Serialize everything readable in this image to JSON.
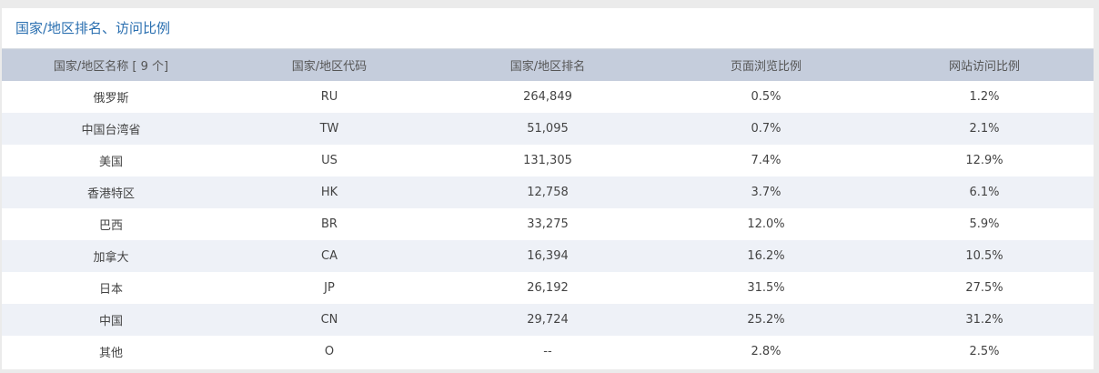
{
  "panel": {
    "title": "国家/地区排名、访问比例"
  },
  "table": {
    "headers": [
      "国家/地区名称 [ 9 个]",
      "国家/地区代码",
      "国家/地区排名",
      "页面浏览比例",
      "网站访问比例"
    ],
    "rows": [
      [
        "俄罗斯",
        "RU",
        "264,849",
        "0.5%",
        "1.2%"
      ],
      [
        "中国台湾省",
        "TW",
        "51,095",
        "0.7%",
        "2.1%"
      ],
      [
        "美国",
        "US",
        "131,305",
        "7.4%",
        "12.9%"
      ],
      [
        "香港特区",
        "HK",
        "12,758",
        "3.7%",
        "6.1%"
      ],
      [
        "巴西",
        "BR",
        "33,275",
        "12.0%",
        "5.9%"
      ],
      [
        "加拿大",
        "CA",
        "16,394",
        "16.2%",
        "10.5%"
      ],
      [
        "日本",
        "JP",
        "26,192",
        "31.5%",
        "27.5%"
      ],
      [
        "中国",
        "CN",
        "29,724",
        "25.2%",
        "31.2%"
      ],
      [
        "其他",
        "O",
        "--",
        "2.8%",
        "2.5%"
      ]
    ]
  },
  "colors": {
    "title": "#2a6fb0",
    "header_bg": "#c5cddc",
    "row_alt_bg": "#eef1f7",
    "page_bg": "#ebebeb"
  }
}
